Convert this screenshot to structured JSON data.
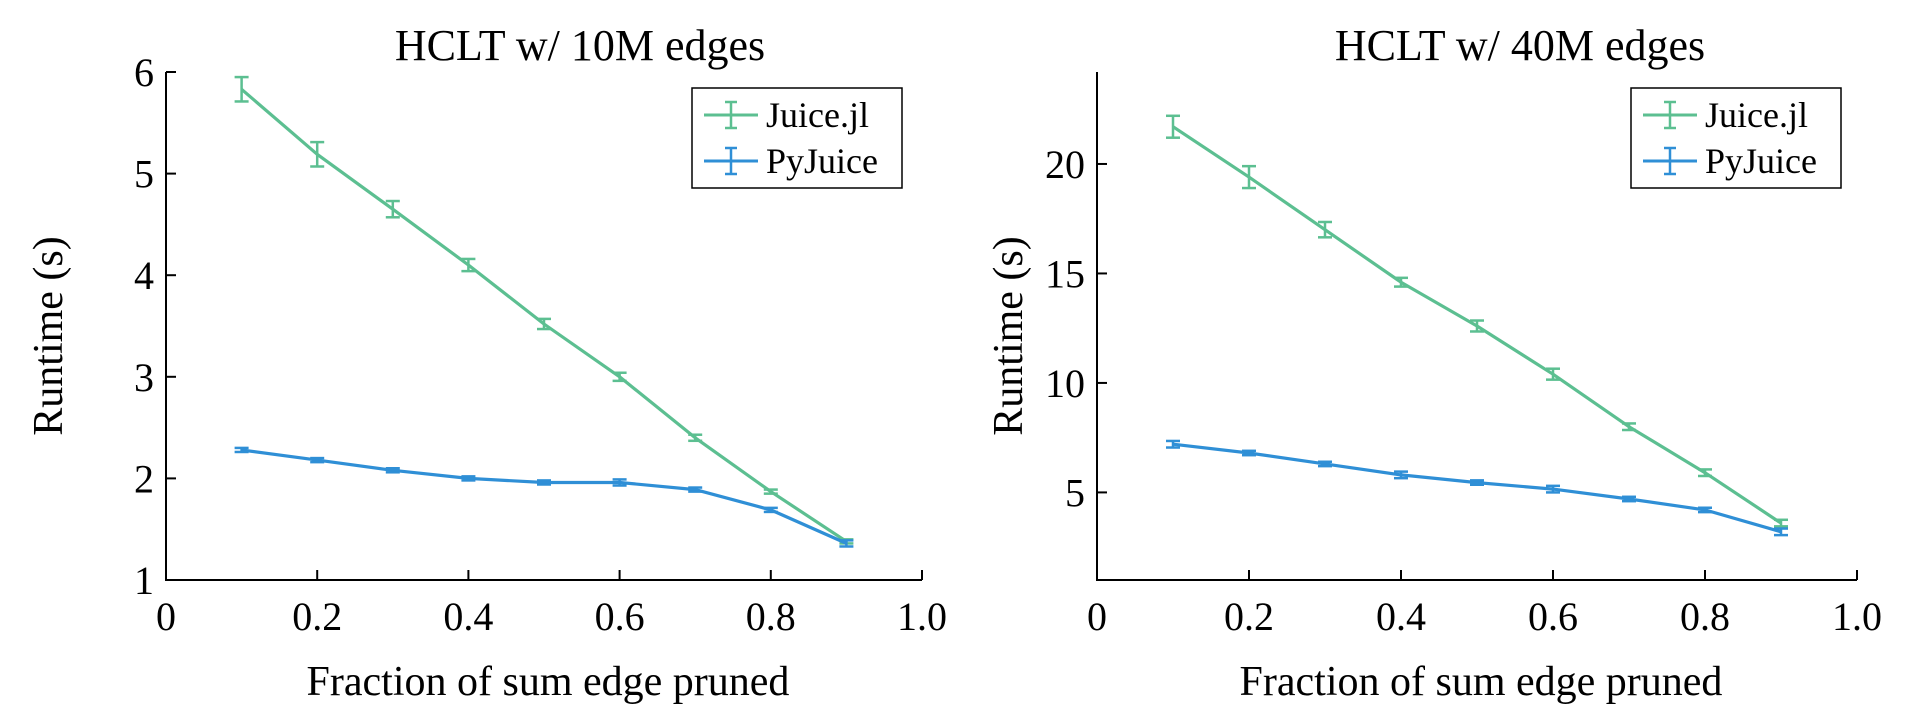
{
  "chart_data": [
    {
      "type": "line",
      "title": "HCLT w/ 10M edges",
      "xlabel": "Fraction of sum edge pruned",
      "ylabel": "Runtime (s)",
      "xlim": [
        0,
        1.0
      ],
      "ylim": [
        1,
        6
      ],
      "xticks": [
        0,
        0.2,
        0.4,
        0.6,
        0.8,
        1.0
      ],
      "xtick_labels": [
        "0",
        "0.2",
        "0.4",
        "0.6",
        "0.8",
        "1.0"
      ],
      "yticks": [
        1,
        2,
        3,
        4,
        5,
        6
      ],
      "ytick_labels": [
        "1",
        "2",
        "3",
        "4",
        "5",
        "6"
      ],
      "grid": false,
      "legend_position": "top-right",
      "x": [
        0.1,
        0.2,
        0.3,
        0.4,
        0.5,
        0.6,
        0.7,
        0.8,
        0.9
      ],
      "series": [
        {
          "name": "Juice.jl",
          "color": "#5cbf91",
          "values": [
            5.83,
            5.19,
            4.65,
            4.1,
            3.52,
            3.0,
            2.4,
            1.87,
            1.38
          ],
          "errors": [
            0.12,
            0.12,
            0.08,
            0.06,
            0.05,
            0.04,
            0.03,
            0.02,
            0.02
          ]
        },
        {
          "name": "PyJuice",
          "color": "#2f8fd6",
          "values": [
            2.28,
            2.18,
            2.08,
            2.0,
            1.96,
            1.96,
            1.89,
            1.69,
            1.36
          ],
          "errors": [
            0.02,
            0.02,
            0.02,
            0.02,
            0.02,
            0.03,
            0.02,
            0.02,
            0.03
          ]
        }
      ]
    },
    {
      "type": "line",
      "title": "HCLT w/ 40M edges",
      "xlabel": "Fraction of sum edge pruned",
      "ylabel": "Runtime (s)",
      "xlim": [
        0,
        1.0
      ],
      "ylim": [
        1,
        24.2
      ],
      "xticks": [
        0,
        0.2,
        0.4,
        0.6,
        0.8,
        1.0
      ],
      "xtick_labels": [
        "0",
        "0.2",
        "0.4",
        "0.6",
        "0.8",
        "1.0"
      ],
      "yticks": [
        5,
        10,
        15,
        20
      ],
      "ytick_labels": [
        "5",
        "10",
        "15",
        "20"
      ],
      "grid": false,
      "legend_position": "top-right",
      "x": [
        0.1,
        0.2,
        0.3,
        0.4,
        0.5,
        0.6,
        0.7,
        0.8,
        0.9
      ],
      "series": [
        {
          "name": "Juice.jl",
          "color": "#5cbf91",
          "values": [
            21.7,
            19.4,
            17.0,
            14.6,
            12.6,
            10.4,
            8.0,
            5.9,
            3.6
          ],
          "errors": [
            0.5,
            0.5,
            0.35,
            0.2,
            0.25,
            0.25,
            0.15,
            0.15,
            0.15
          ]
        },
        {
          "name": "PyJuice",
          "color": "#2f8fd6",
          "values": [
            7.2,
            6.8,
            6.3,
            5.8,
            5.45,
            5.15,
            4.7,
            4.2,
            3.2
          ],
          "errors": [
            0.15,
            0.1,
            0.1,
            0.15,
            0.1,
            0.15,
            0.1,
            0.1,
            0.15
          ]
        }
      ]
    }
  ]
}
